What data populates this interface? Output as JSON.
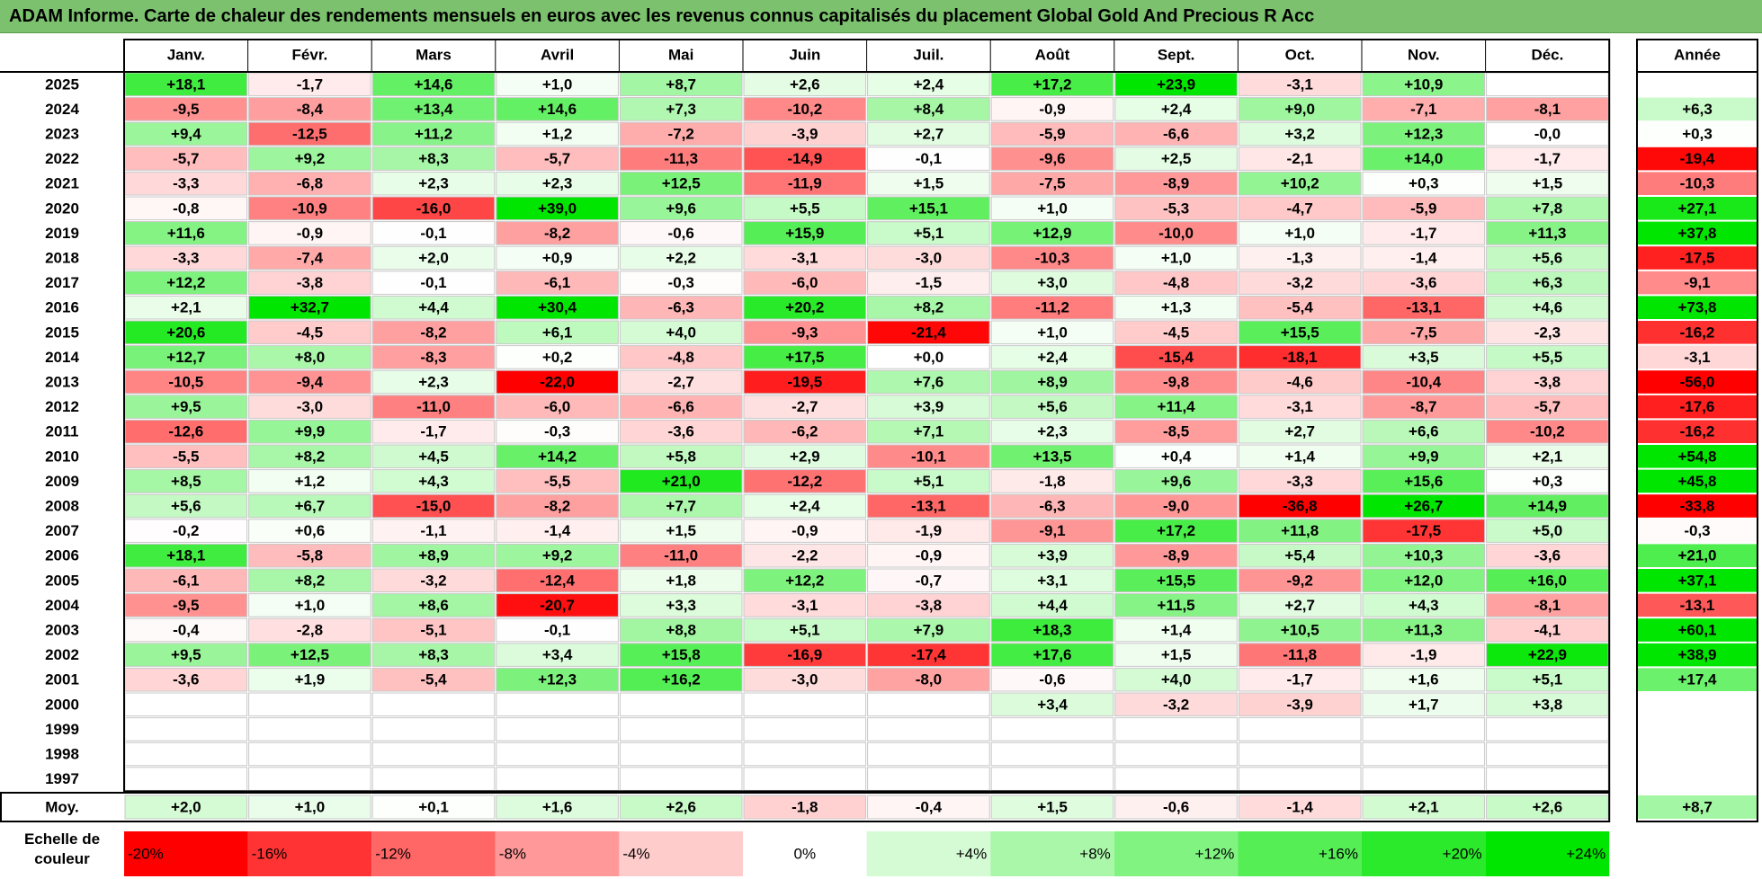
{
  "title": "ADAM Informe. Carte de chaleur des rendements mensuels en euros avec les revenus connus capitalisés du placement Global Gold And Precious R Acc",
  "chart_data": {
    "type": "heatmap",
    "columns": [
      "Janv.",
      "Févr.",
      "Mars",
      "Avril",
      "Mai",
      "Juin",
      "Juil.",
      "Août",
      "Sept.",
      "Oct.",
      "Nov.",
      "Déc."
    ],
    "year_column_label": "Année",
    "rows": [
      {
        "label": "2025",
        "values": [
          "+18,1",
          "-1,7",
          "+14,6",
          "+1,0",
          "+8,7",
          "+2,6",
          "+2,4",
          "+17,2",
          "+23,9",
          "-3,1",
          "+10,9",
          ""
        ],
        "year": ""
      },
      {
        "label": "2024",
        "values": [
          "-9,5",
          "-8,4",
          "+13,4",
          "+14,6",
          "+7,3",
          "-10,2",
          "+8,4",
          "-0,9",
          "+2,4",
          "+9,0",
          "-7,1",
          "-8,1"
        ],
        "year": "+6,3"
      },
      {
        "label": "2023",
        "values": [
          "+9,4",
          "-12,5",
          "+11,2",
          "+1,2",
          "-7,2",
          "-3,9",
          "+2,7",
          "-5,9",
          "-6,6",
          "+3,2",
          "+12,3",
          "-0,0"
        ],
        "year": "+0,3"
      },
      {
        "label": "2022",
        "values": [
          "-5,7",
          "+9,2",
          "+8,3",
          "-5,7",
          "-11,3",
          "-14,9",
          "-0,1",
          "-9,6",
          "+2,5",
          "-2,1",
          "+14,0",
          "-1,7"
        ],
        "year": "-19,4"
      },
      {
        "label": "2021",
        "values": [
          "-3,3",
          "-6,8",
          "+2,3",
          "+2,3",
          "+12,5",
          "-11,9",
          "+1,5",
          "-7,5",
          "-8,9",
          "+10,2",
          "+0,3",
          "+1,5"
        ],
        "year": "-10,3"
      },
      {
        "label": "2020",
        "values": [
          "-0,8",
          "-10,9",
          "-16,0",
          "+39,0",
          "+9,6",
          "+5,5",
          "+15,1",
          "+1,0",
          "-5,3",
          "-4,7",
          "-5,9",
          "+7,8"
        ],
        "year": "+27,1"
      },
      {
        "label": "2019",
        "values": [
          "+11,6",
          "-0,9",
          "-0,1",
          "-8,2",
          "-0,6",
          "+15,9",
          "+5,1",
          "+12,9",
          "-10,0",
          "+1,0",
          "-1,7",
          "+11,3"
        ],
        "year": "+37,8"
      },
      {
        "label": "2018",
        "values": [
          "-3,3",
          "-7,4",
          "+2,0",
          "+0,9",
          "+2,2",
          "-3,1",
          "-3,0",
          "-10,3",
          "+1,0",
          "-1,3",
          "-1,4",
          "+5,6"
        ],
        "year": "-17,5"
      },
      {
        "label": "2017",
        "values": [
          "+12,2",
          "-3,8",
          "-0,1",
          "-6,1",
          "-0,3",
          "-6,0",
          "-1,5",
          "+3,0",
          "-4,8",
          "-3,2",
          "-3,6",
          "+6,3"
        ],
        "year": "-9,1"
      },
      {
        "label": "2016",
        "values": [
          "+2,1",
          "+32,7",
          "+4,4",
          "+30,4",
          "-6,3",
          "+20,2",
          "+8,2",
          "-11,2",
          "+1,3",
          "-5,4",
          "-13,1",
          "+4,6"
        ],
        "year": "+73,8"
      },
      {
        "label": "2015",
        "values": [
          "+20,6",
          "-4,5",
          "-8,2",
          "+6,1",
          "+4,0",
          "-9,3",
          "-21,4",
          "+1,0",
          "-4,5",
          "+15,5",
          "-7,5",
          "-2,3"
        ],
        "year": "-16,2"
      },
      {
        "label": "2014",
        "values": [
          "+12,7",
          "+8,0",
          "-8,3",
          "+0,2",
          "-4,8",
          "+17,5",
          "+0,0",
          "+2,4",
          "-15,4",
          "-18,1",
          "+3,5",
          "+5,5"
        ],
        "year": "-3,1"
      },
      {
        "label": "2013",
        "values": [
          "-10,5",
          "-9,4",
          "+2,3",
          "-22,0",
          "-2,7",
          "-19,5",
          "+7,6",
          "+8,9",
          "-9,8",
          "-4,6",
          "-10,4",
          "-3,8"
        ],
        "year": "-56,0"
      },
      {
        "label": "2012",
        "values": [
          "+9,5",
          "-3,0",
          "-11,0",
          "-6,0",
          "-6,6",
          "-2,7",
          "+3,9",
          "+5,6",
          "+11,4",
          "-3,1",
          "-8,7",
          "-5,7"
        ],
        "year": "-17,6"
      },
      {
        "label": "2011",
        "values": [
          "-12,6",
          "+9,9",
          "-1,7",
          "-0,3",
          "-3,6",
          "-6,2",
          "+7,1",
          "+2,3",
          "-8,5",
          "+2,7",
          "+6,6",
          "-10,2"
        ],
        "year": "-16,2"
      },
      {
        "label": "2010",
        "values": [
          "-5,5",
          "+8,2",
          "+4,5",
          "+14,2",
          "+5,8",
          "+2,9",
          "-10,1",
          "+13,5",
          "+0,4",
          "+1,4",
          "+9,9",
          "+2,1"
        ],
        "year": "+54,8"
      },
      {
        "label": "2009",
        "values": [
          "+8,5",
          "+1,2",
          "+4,3",
          "-5,5",
          "+21,0",
          "-12,2",
          "+5,1",
          "-1,8",
          "+9,6",
          "-3,3",
          "+15,6",
          "+0,3"
        ],
        "year": "+45,8"
      },
      {
        "label": "2008",
        "values": [
          "+5,6",
          "+6,7",
          "-15,0",
          "-8,2",
          "+7,7",
          "+2,4",
          "-13,1",
          "-6,3",
          "-9,0",
          "-36,8",
          "+26,7",
          "+14,9"
        ],
        "year": "-33,8"
      },
      {
        "label": "2007",
        "values": [
          "-0,2",
          "+0,6",
          "-1,1",
          "-1,4",
          "+1,5",
          "-0,9",
          "-1,9",
          "-9,1",
          "+17,2",
          "+11,8",
          "-17,5",
          "+5,0"
        ],
        "year": "-0,3"
      },
      {
        "label": "2006",
        "values": [
          "+18,1",
          "-5,8",
          "+8,9",
          "+9,2",
          "-11,0",
          "-2,2",
          "-0,9",
          "+3,9",
          "-8,9",
          "+5,4",
          "+10,3",
          "-3,6"
        ],
        "year": "+21,0"
      },
      {
        "label": "2005",
        "values": [
          "-6,1",
          "+8,2",
          "-3,2",
          "-12,4",
          "+1,8",
          "+12,2",
          "-0,7",
          "+3,1",
          "+15,5",
          "-9,2",
          "+12,0",
          "+16,0"
        ],
        "year": "+37,1"
      },
      {
        "label": "2004",
        "values": [
          "-9,5",
          "+1,0",
          "+8,6",
          "-20,7",
          "+3,3",
          "-3,1",
          "-3,8",
          "+4,4",
          "+11,5",
          "+2,7",
          "+4,3",
          "-8,1"
        ],
        "year": "-13,1"
      },
      {
        "label": "2003",
        "values": [
          "-0,4",
          "-2,8",
          "-5,1",
          "-0,1",
          "+8,8",
          "+5,1",
          "+7,9",
          "+18,3",
          "+1,4",
          "+10,5",
          "+11,3",
          "-4,1"
        ],
        "year": "+60,1"
      },
      {
        "label": "2002",
        "values": [
          "+9,5",
          "+12,5",
          "+8,3",
          "+3,4",
          "+15,8",
          "-16,9",
          "-17,4",
          "+17,6",
          "+1,5",
          "-11,8",
          "-1,9",
          "+22,9"
        ],
        "year": "+38,9"
      },
      {
        "label": "2001",
        "values": [
          "-3,6",
          "+1,9",
          "-5,4",
          "+12,3",
          "+16,2",
          "-3,0",
          "-8,0",
          "-0,6",
          "+4,0",
          "-1,7",
          "+1,6",
          "+5,1"
        ],
        "year": "+17,4"
      },
      {
        "label": "2000",
        "values": [
          "",
          "",
          "",
          "",
          "",
          "",
          "",
          "+3,4",
          "-3,2",
          "-3,9",
          "+1,7",
          "+3,8"
        ],
        "year": ""
      },
      {
        "label": "1999",
        "values": [
          "",
          "",
          "",
          "",
          "",
          "",
          "",
          "",
          "",
          "",
          "",
          ""
        ],
        "year": ""
      },
      {
        "label": "1998",
        "values": [
          "",
          "",
          "",
          "",
          "",
          "",
          "",
          "",
          "",
          "",
          "",
          ""
        ],
        "year": ""
      },
      {
        "label": "1997",
        "values": [
          "",
          "",
          "",
          "",
          "",
          "",
          "",
          "",
          "",
          "",
          "",
          ""
        ],
        "year": ""
      }
    ],
    "average": {
      "label": "Moy.",
      "values": [
        "+2,0",
        "+1,0",
        "+0,1",
        "+1,6",
        "+2,6",
        "-1,8",
        "-0,4",
        "+1,5",
        "-0,6",
        "-1,4",
        "+2,1",
        "+2,6"
      ],
      "year": "+8,7"
    },
    "color_scale": {
      "label": "Echelle de couleur",
      "stops": [
        "-20%",
        "-16%",
        "-12%",
        "-8%",
        "-4%",
        "0%",
        "+4%",
        "+8%",
        "+12%",
        "+16%",
        "+20%",
        "+24%"
      ]
    },
    "colors": {
      "negative": "#ff0000",
      "neutral": "#ffffff",
      "positive": "#00e600",
      "title_bg": "#7cc26e"
    }
  }
}
